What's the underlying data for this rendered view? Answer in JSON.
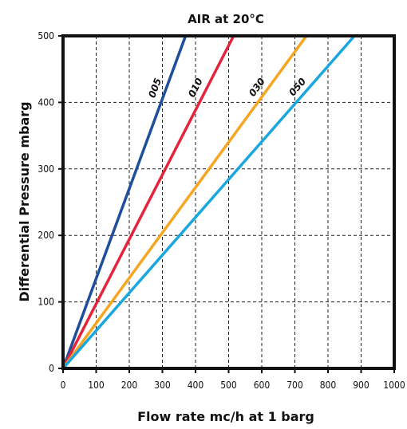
{
  "chart_data": {
    "type": "line",
    "title": "AIR at 20°C",
    "xlabel": "Flow rate mc/h at 1 barg",
    "ylabel": "Differential Pressure mbarg",
    "xlim": [
      0,
      1000
    ],
    "ylim": [
      0,
      500
    ],
    "x_ticks": [
      "0",
      "100",
      "200",
      "300",
      "400",
      "500",
      "600",
      "700",
      "800",
      "900",
      "1000"
    ],
    "y_ticks": [
      "0",
      "100",
      "200",
      "300",
      "400",
      "500"
    ],
    "grid": true,
    "series": [
      {
        "name": "005",
        "color": "#1f4e9c",
        "x": [
          0,
          370
        ],
        "y": [
          0,
          500
        ]
      },
      {
        "name": "010",
        "color": "#e5243b",
        "x": [
          0,
          515
        ],
        "y": [
          0,
          500
        ]
      },
      {
        "name": "030",
        "color": "#f5a623",
        "x": [
          0,
          735
        ],
        "y": [
          0,
          500
        ]
      },
      {
        "name": "050",
        "color": "#1aa7e0",
        "x": [
          0,
          880
        ],
        "y": [
          0,
          500
        ]
      }
    ]
  }
}
